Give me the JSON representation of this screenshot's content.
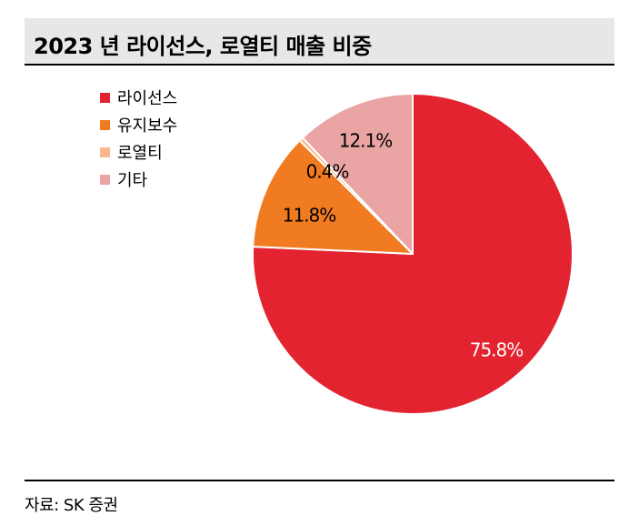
{
  "header": {
    "title": "2023 년 라이선스, 로열티 매출 비중"
  },
  "footer": {
    "source": "자료: SK 증권"
  },
  "chart_data": {
    "type": "pie",
    "title": "2023 년 라이선스, 로열티 매출 비중",
    "legend_position": "top-left",
    "start": "12 o'clock",
    "direction": "clockwise",
    "slices": [
      {
        "name": "라이선스",
        "value": 75.8,
        "label": "75.8%",
        "color": "#e3232f",
        "label_color": "#ffffff"
      },
      {
        "name": "유지보수",
        "value": 11.8,
        "label": "11.8%",
        "color": "#f07b20",
        "label_color": "#000000"
      },
      {
        "name": "로열티",
        "value": 0.4,
        "label": "0.4%",
        "color": "#f9b98a",
        "label_color": "#000000"
      },
      {
        "name": "기타",
        "value": 12.1,
        "label": "12.1%",
        "color": "#eaa4a4",
        "label_color": "#000000"
      }
    ]
  }
}
